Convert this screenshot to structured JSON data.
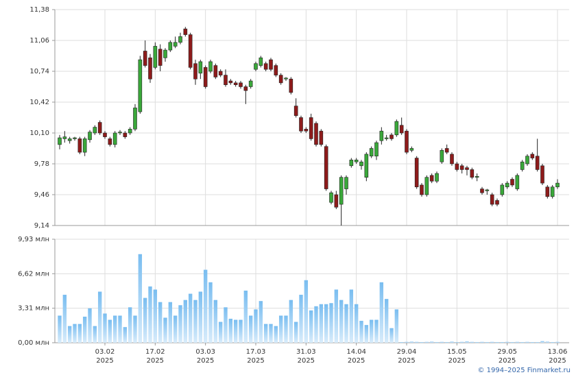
{
  "chart_data": [
    {
      "type": "candlestick",
      "categories": [
        null,
        null,
        null,
        null,
        null,
        null,
        null,
        null,
        null,
        "03.02\n2025",
        null,
        null,
        null,
        null,
        null,
        null,
        null,
        null,
        null,
        "17.02\n2025",
        null,
        null,
        null,
        null,
        null,
        null,
        null,
        null,
        null,
        "03.03\n2025",
        null,
        null,
        null,
        null,
        null,
        null,
        null,
        null,
        null,
        "17.03\n2025",
        null,
        null,
        null,
        null,
        null,
        null,
        null,
        null,
        null,
        "31.03\n2025",
        null,
        null,
        null,
        null,
        null,
        null,
        null,
        null,
        null,
        "14.04\n2025",
        null,
        null,
        null,
        null,
        null,
        null,
        null,
        null,
        null,
        "29.04\n2025",
        null,
        null,
        null,
        null,
        null,
        null,
        null,
        null,
        null,
        "15.05\n2025",
        null,
        null,
        null,
        null,
        null,
        null,
        null,
        null,
        null,
        "29.05\n2025",
        null,
        null,
        null,
        null,
        null,
        null,
        null,
        null,
        null,
        "13.06\n2025"
      ],
      "open": [
        9.98,
        10.04,
        10.02,
        10.04,
        10.04,
        9.9,
        10.03,
        10.1,
        10.21,
        10.1,
        10.04,
        9.98,
        10.1,
        10.1,
        10.1,
        10.14,
        10.32,
        10.95,
        10.88,
        10.78,
        10.97,
        10.88,
        10.96,
        11.0,
        11.04,
        11.18,
        11.12,
        10.82,
        10.72,
        10.78,
        10.74,
        10.8,
        10.74,
        10.7,
        10.64,
        10.62,
        10.62,
        10.58,
        10.58,
        10.76,
        10.8,
        10.82,
        10.86,
        10.8,
        10.7,
        10.66,
        10.66,
        10.38,
        10.26,
        10.14,
        10.26,
        10.2,
        10.12,
        9.96,
        9.38,
        9.46,
        9.36,
        9.52,
        9.76,
        9.8,
        9.76,
        9.64,
        9.86,
        9.86,
        10.02,
        10.04,
        10.08,
        10.08,
        10.18,
        10.12,
        9.92,
        9.84,
        9.56,
        9.46,
        9.66,
        9.6,
        9.8,
        9.94,
        9.88,
        9.78,
        9.76,
        9.74,
        9.72,
        9.64,
        9.52,
        9.5,
        9.46,
        9.4,
        9.46,
        9.54,
        9.62,
        9.52,
        9.72,
        9.78,
        9.88,
        9.86,
        9.76,
        9.54,
        9.44,
        9.54
      ],
      "high": [
        10.08,
        10.12,
        10.06,
        10.06,
        10.06,
        10.06,
        10.13,
        10.18,
        10.23,
        10.12,
        10.06,
        10.12,
        10.13,
        10.12,
        10.16,
        10.4,
        10.9,
        11.06,
        10.92,
        11.04,
        11.02,
        10.98,
        11.06,
        11.1,
        11.14,
        11.2,
        11.14,
        10.86,
        10.86,
        10.8,
        10.86,
        10.82,
        10.76,
        10.76,
        10.66,
        10.64,
        10.64,
        10.6,
        10.66,
        10.84,
        10.9,
        10.84,
        10.88,
        10.82,
        10.72,
        10.68,
        10.68,
        10.46,
        10.28,
        10.16,
        10.3,
        10.22,
        10.14,
        9.98,
        9.5,
        9.5,
        9.66,
        9.66,
        9.84,
        9.84,
        9.82,
        9.9,
        9.96,
        10.02,
        10.16,
        10.08,
        10.1,
        10.24,
        10.26,
        10.14,
        9.96,
        9.86,
        9.58,
        9.66,
        9.68,
        9.7,
        9.94,
        9.98,
        9.9,
        9.8,
        9.78,
        9.76,
        9.74,
        9.68,
        9.54,
        9.52,
        9.48,
        9.42,
        9.58,
        9.6,
        9.64,
        9.68,
        9.82,
        9.88,
        9.9,
        10.04,
        9.78,
        9.56,
        9.56,
        9.62
      ],
      "low": [
        9.93,
        10.0,
        9.99,
        10.02,
        9.88,
        9.86,
        10.0,
        10.08,
        10.08,
        10.04,
        9.96,
        9.95,
        10.08,
        10.04,
        10.08,
        10.12,
        10.3,
        10.78,
        10.62,
        10.76,
        10.74,
        10.84,
        10.94,
        10.98,
        11.02,
        11.1,
        10.76,
        10.6,
        10.66,
        10.56,
        10.72,
        10.66,
        10.68,
        10.58,
        10.6,
        10.58,
        10.56,
        10.4,
        10.56,
        10.74,
        10.78,
        10.74,
        10.74,
        10.68,
        10.6,
        10.64,
        10.5,
        10.26,
        10.1,
        10.1,
        10.02,
        9.96,
        9.96,
        9.5,
        9.36,
        9.31,
        9.14,
        9.46,
        9.74,
        9.78,
        9.72,
        9.6,
        9.84,
        9.82,
        9.98,
        10.02,
        10.02,
        10.06,
        10.08,
        9.88,
        9.9,
        9.52,
        9.44,
        9.44,
        9.58,
        9.58,
        9.78,
        9.88,
        9.76,
        9.7,
        9.68,
        9.66,
        9.62,
        9.6,
        9.46,
        9.46,
        9.34,
        9.34,
        9.44,
        9.52,
        9.54,
        9.5,
        9.7,
        9.76,
        9.82,
        9.7,
        9.56,
        9.42,
        9.42,
        9.52
      ],
      "close": [
        10.05,
        10.06,
        10.04,
        10.05,
        9.9,
        10.04,
        10.11,
        10.16,
        10.1,
        10.06,
        9.98,
        10.1,
        10.11,
        10.06,
        10.14,
        10.36,
        10.86,
        10.8,
        10.66,
        11.0,
        10.8,
        10.96,
        11.04,
        11.04,
        11.1,
        11.12,
        10.78,
        10.66,
        10.84,
        10.58,
        10.84,
        10.68,
        10.7,
        10.6,
        10.62,
        10.6,
        10.58,
        10.54,
        10.64,
        10.82,
        10.88,
        10.76,
        10.76,
        10.7,
        10.62,
        10.67,
        10.52,
        10.28,
        10.12,
        10.12,
        10.04,
        9.98,
        9.98,
        9.52,
        9.48,
        9.33,
        9.64,
        9.64,
        9.82,
        9.82,
        9.8,
        9.88,
        9.94,
        10.0,
        10.12,
        10.05,
        10.04,
        10.22,
        10.1,
        9.9,
        9.94,
        9.54,
        9.46,
        9.64,
        9.6,
        9.68,
        9.92,
        9.9,
        9.78,
        9.72,
        9.72,
        9.72,
        9.64,
        9.65,
        9.48,
        9.51,
        9.36,
        9.36,
        9.56,
        9.58,
        9.56,
        9.66,
        9.8,
        9.86,
        9.84,
        9.72,
        9.58,
        9.44,
        9.54,
        9.58
      ],
      "up_color": "#3aa83a",
      "down_color": "#8e1b1b",
      "ylim": [
        9.14,
        11.38
      ],
      "yticks": [
        {
          "value": 9.14,
          "label": "9,14"
        },
        {
          "value": 9.46,
          "label": "9,46"
        },
        {
          "value": 9.78,
          "label": "9,78"
        },
        {
          "value": 10.1,
          "label": "10,10"
        },
        {
          "value": 10.42,
          "label": "10,42"
        },
        {
          "value": 10.74,
          "label": "10,74"
        },
        {
          "value": 11.06,
          "label": "11,06"
        },
        {
          "value": 11.38,
          "label": "11,38"
        }
      ],
      "grid": true
    },
    {
      "type": "bar",
      "values": [
        2.6,
        4.6,
        1.6,
        1.8,
        1.8,
        2.5,
        3.3,
        1.6,
        4.9,
        2.8,
        2.2,
        2.6,
        2.6,
        1.5,
        3.4,
        2.6,
        8.5,
        4.3,
        5.4,
        5.1,
        3.9,
        2.4,
        3.9,
        2.6,
        3.6,
        4.1,
        4.7,
        4.1,
        4.9,
        7.0,
        5.8,
        4.1,
        2.0,
        3.4,
        2.3,
        2.2,
        2.2,
        5.0,
        2.6,
        3.2,
        4.0,
        1.8,
        1.8,
        1.6,
        2.6,
        2.6,
        4.1,
        2.0,
        4.6,
        6.0,
        3.1,
        3.5,
        3.7,
        3.7,
        3.8,
        5.1,
        4.1,
        3.7,
        5.1,
        3.7,
        2.1,
        1.7,
        2.2,
        2.2,
        5.8,
        4.2,
        1.4,
        3.2,
        0.06,
        0.08,
        0.1,
        0.08,
        0.06,
        0.08,
        0.1,
        0.06,
        0.08,
        0.06,
        0.1,
        0.06,
        0.08,
        0.12,
        0.08,
        0.06,
        0.08,
        0.06,
        0.08,
        0.06,
        0.06,
        0.08,
        0.06,
        0.08,
        0.06,
        0.08,
        0.06,
        0.06,
        0.15,
        0.1,
        0.06,
        0.08
      ],
      "color": "#8cc8f2",
      "ylim": [
        0,
        9.93
      ],
      "yticks": [
        {
          "value": 0,
          "label": "0,00 млн"
        },
        {
          "value": 3.31,
          "label": "3,31 млн"
        },
        {
          "value": 6.62,
          "label": "6,62 млн"
        },
        {
          "value": 9.93,
          "label": "9,93 млн"
        }
      ],
      "grid": true
    }
  ],
  "footer": "© 1994–2025 Finmarket.ru"
}
